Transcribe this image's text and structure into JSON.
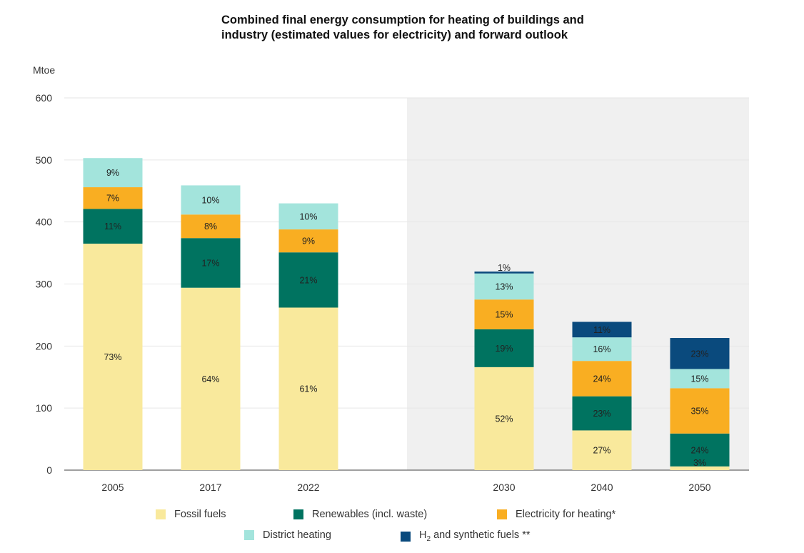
{
  "chart_data": {
    "type": "bar",
    "stacked": true,
    "title": "Combined final energy consumption for heating of buildings and industry (estimated values for electricity) and forward outlook",
    "title_lines": [
      "Combined final energy consumption for heating of buildings and",
      "industry (estimated values for electricity) and forward outlook"
    ],
    "ylabel": "Mtoe",
    "xlabel": "",
    "ylim": [
      0,
      600
    ],
    "yticks": [
      0,
      100,
      200,
      300,
      400,
      500,
      600
    ],
    "categories": [
      "2005",
      "2017",
      "2022",
      "2030",
      "2040",
      "2050"
    ],
    "forecast_categories": [
      "2030",
      "2040",
      "2050"
    ],
    "grid": true,
    "legend_position": "bottom",
    "series": [
      {
        "name": "Fossil fuels",
        "color": "#f9e99c",
        "values": [
          365,
          294,
          262,
          166,
          64,
          6
        ],
        "labels": [
          "73%",
          "64%",
          "61%",
          "52%",
          "27%",
          "3%"
        ]
      },
      {
        "name": "Renewables (incl. waste)",
        "color": "#007360",
        "values": [
          56,
          80,
          89,
          61,
          55,
          53
        ],
        "labels": [
          "11%",
          "17%",
          "21%",
          "19%",
          "23%",
          "24%"
        ]
      },
      {
        "name": "Electricity for heating*",
        "color": "#f9ae22",
        "values": [
          35,
          38,
          37,
          48,
          57,
          73
        ],
        "labels": [
          "7%",
          "8%",
          "9%",
          "15%",
          "24%",
          "35%"
        ]
      },
      {
        "name": "District heating",
        "color": "#a3e4dc",
        "values": [
          47,
          47,
          42,
          42,
          38,
          31
        ],
        "labels": [
          "9%",
          "10%",
          "10%",
          "13%",
          "16%",
          "15%"
        ]
      },
      {
        "name": "H2 and synthetic fuels **",
        "legend_prefix": "H",
        "legend_sub": "2",
        "legend_suffix": " and synthetic fuels **",
        "color": "#0a4a7d",
        "values": [
          0,
          0,
          0,
          3,
          25,
          50
        ],
        "labels": [
          "",
          "",
          "",
          "1%",
          "11%",
          "23%"
        ]
      }
    ]
  }
}
